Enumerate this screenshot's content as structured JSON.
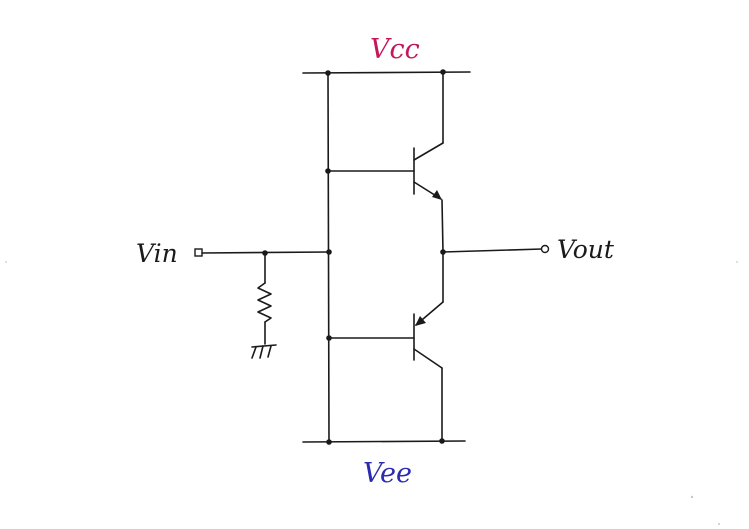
{
  "diagram": {
    "labels": {
      "vcc": "Vcc",
      "vee": "Vee",
      "vin": "Vin",
      "vout": "Vout"
    },
    "colors": {
      "wire": "#1a1a1a",
      "vcc_label": "#c2185b",
      "vee_label": "#2b2bb0",
      "background": "#ffffff"
    },
    "components": [
      {
        "type": "npn-transistor",
        "role": "upper"
      },
      {
        "type": "pnp-transistor",
        "role": "lower"
      },
      {
        "type": "resistor",
        "role": "input-to-ground"
      },
      {
        "type": "ground"
      }
    ]
  }
}
